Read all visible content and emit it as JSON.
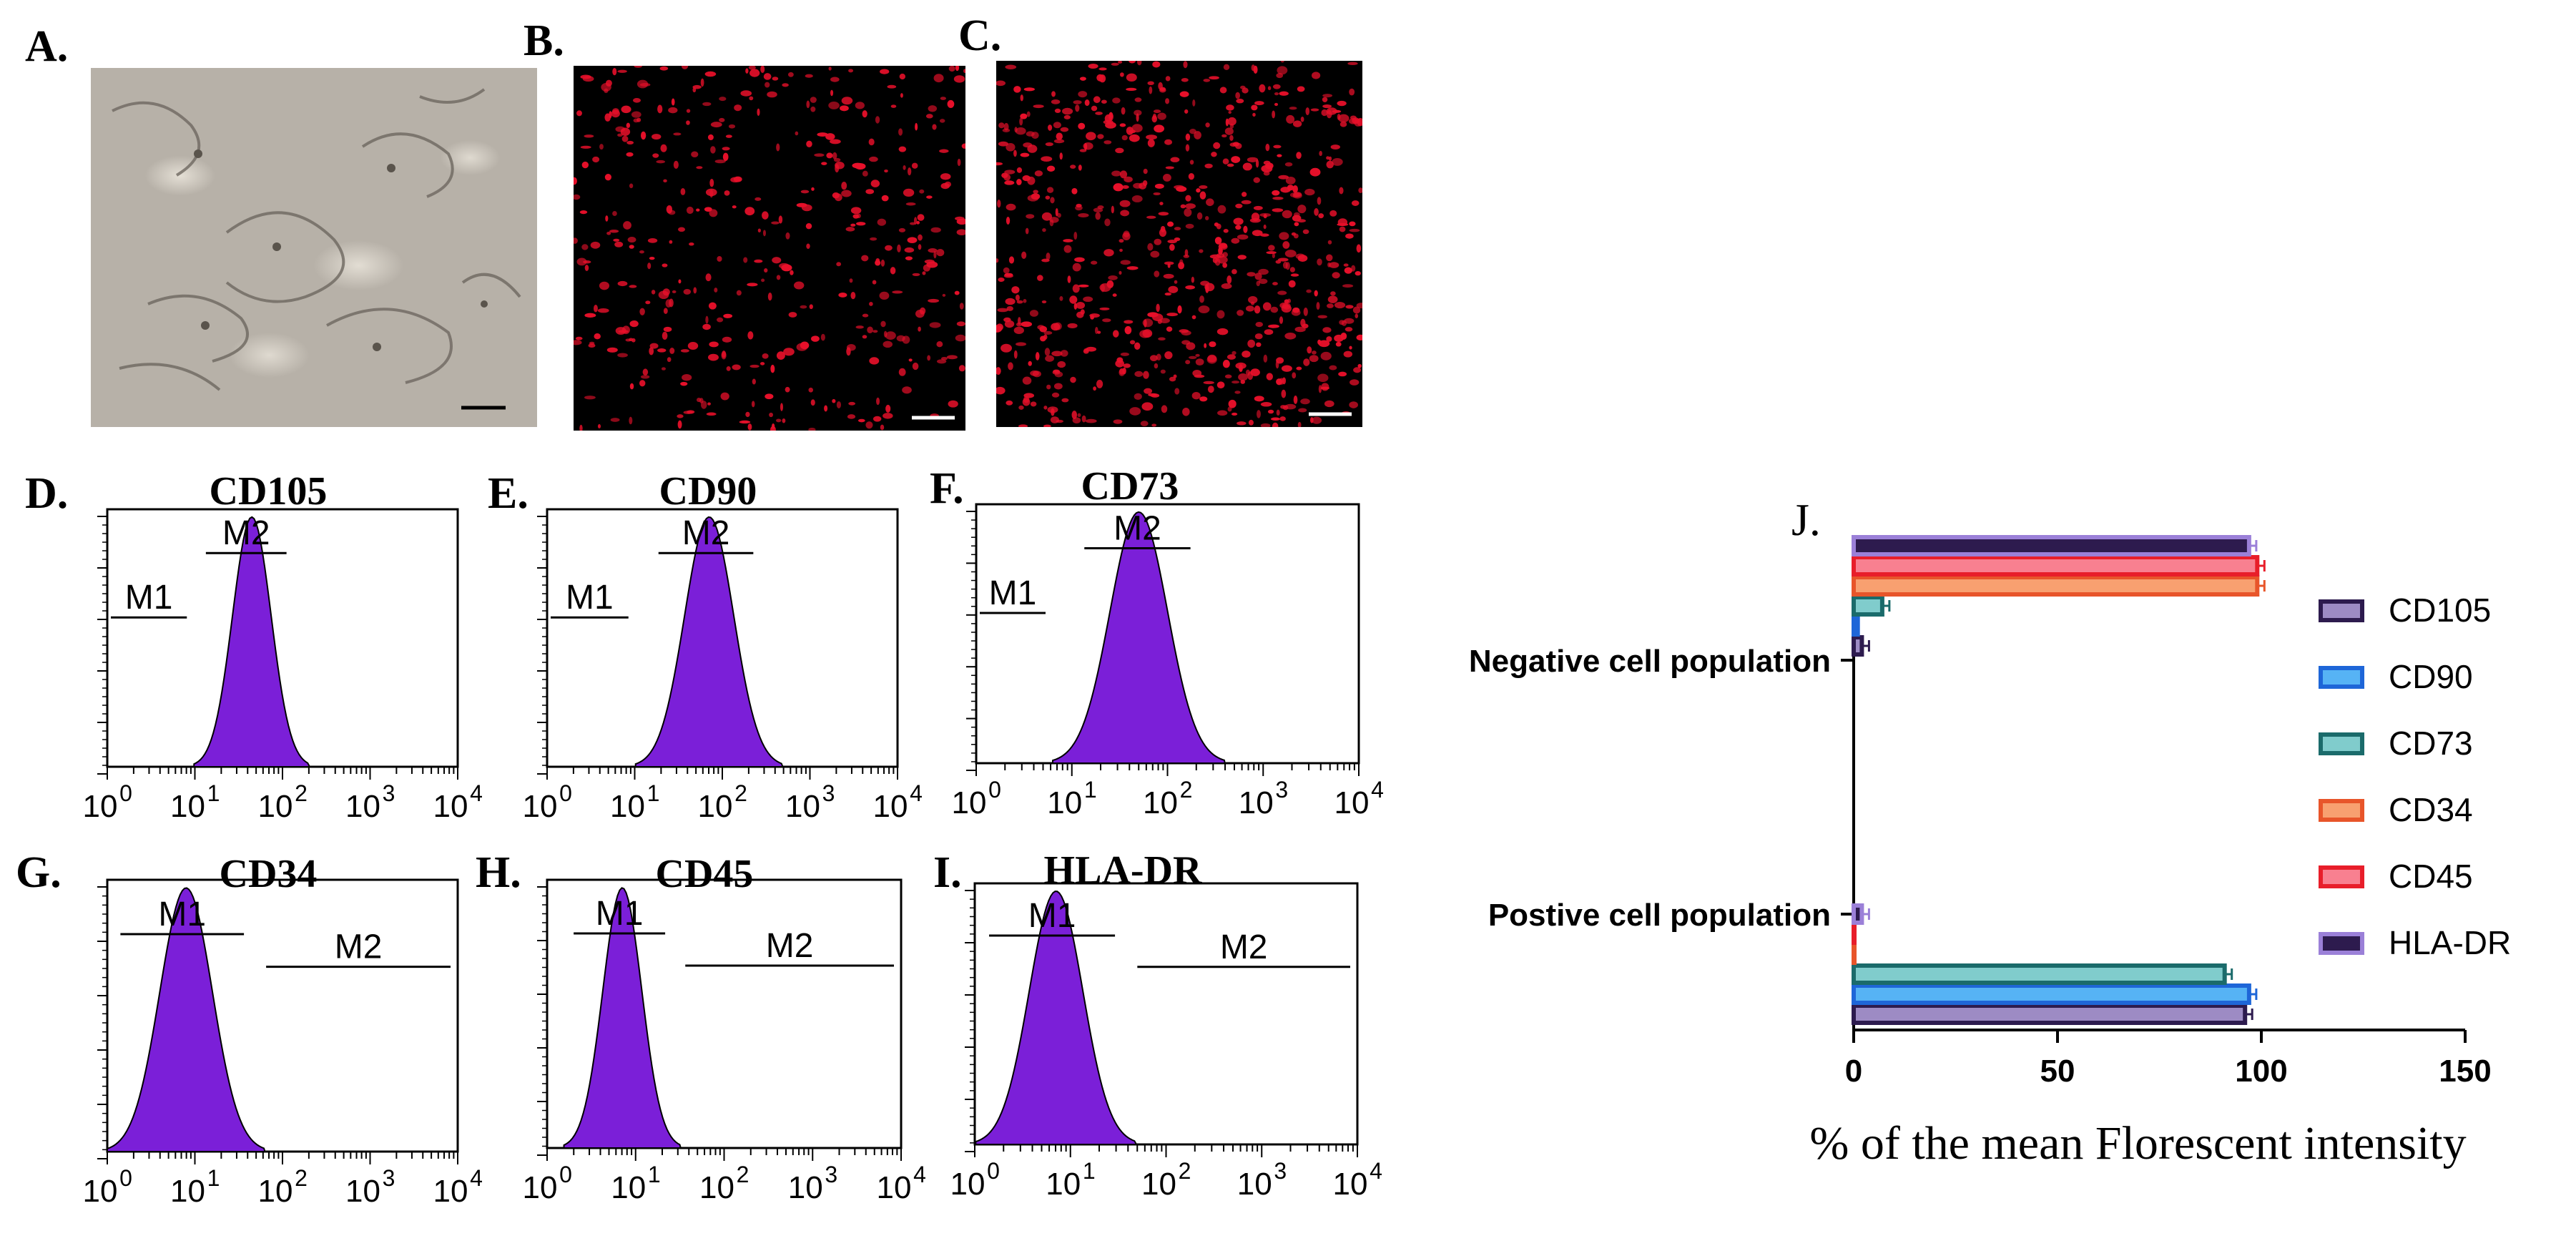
{
  "panel_labels": {
    "a": "A.",
    "b": "B.",
    "c": "C.",
    "d": "D.",
    "e": "E.",
    "f": "F.",
    "g": "G.",
    "h": "H.",
    "i": "I.",
    "j": "J."
  },
  "histograms": [
    {
      "id": "d",
      "title": "CD105",
      "gates": [
        "M1",
        "M2"
      ],
      "peak_log": 1.65,
      "spread": 0.22
    },
    {
      "id": "e",
      "title": "CD90",
      "gates": [
        "M1",
        "M2"
      ],
      "peak_log": 1.85,
      "spread": 0.28
    },
    {
      "id": "f",
      "title": "CD73",
      "gates": [
        "M1",
        "M2"
      ],
      "peak_log": 1.7,
      "spread": 0.3
    },
    {
      "id": "g",
      "title": "CD34",
      "gates": [
        "M1",
        "M2"
      ],
      "peak_log": 0.9,
      "spread": 0.3
    },
    {
      "id": "h",
      "title": "CD45",
      "gates": [
        "M1",
        "M2"
      ],
      "peak_log": 0.85,
      "spread": 0.22
    },
    {
      "id": "i",
      "title": "HLA-DR",
      "gates": [
        "M1",
        "M2"
      ],
      "peak_log": 0.85,
      "spread": 0.28
    }
  ],
  "hist_axis_ticks": [
    "0",
    "1",
    "2",
    "3",
    "4"
  ],
  "chart_data": {
    "type": "bar",
    "orientation": "horizontal",
    "categories": [
      "Negative cell population",
      "Postive cell population"
    ],
    "series": [
      {
        "name": "CD105",
        "color": "#2d1b4e",
        "fill": "#9d8bc4",
        "values": [
          2,
          96
        ]
      },
      {
        "name": "CD90",
        "color": "#1e66d8",
        "fill": "#56b3f5",
        "values": [
          1,
          97
        ]
      },
      {
        "name": "CD73",
        "color": "#1b6b6b",
        "fill": "#80cccc",
        "values": [
          7,
          91
        ]
      },
      {
        "name": "CD34",
        "color": "#e8552a",
        "fill": "#f8a070",
        "values": [
          99,
          0
        ]
      },
      {
        "name": "CD45",
        "color": "#e81e2a",
        "fill": "#f88090",
        "values": [
          99,
          0
        ]
      },
      {
        "name": "HLA-DR",
        "color": "#9b80d8",
        "fill": "#2d1b4e",
        "values": [
          97,
          2
        ]
      }
    ],
    "xlim": [
      0,
      150
    ],
    "xticks": [
      0,
      50,
      100,
      150
    ],
    "xlabel": "% of the mean Florescent intensity",
    "legend": "right"
  }
}
